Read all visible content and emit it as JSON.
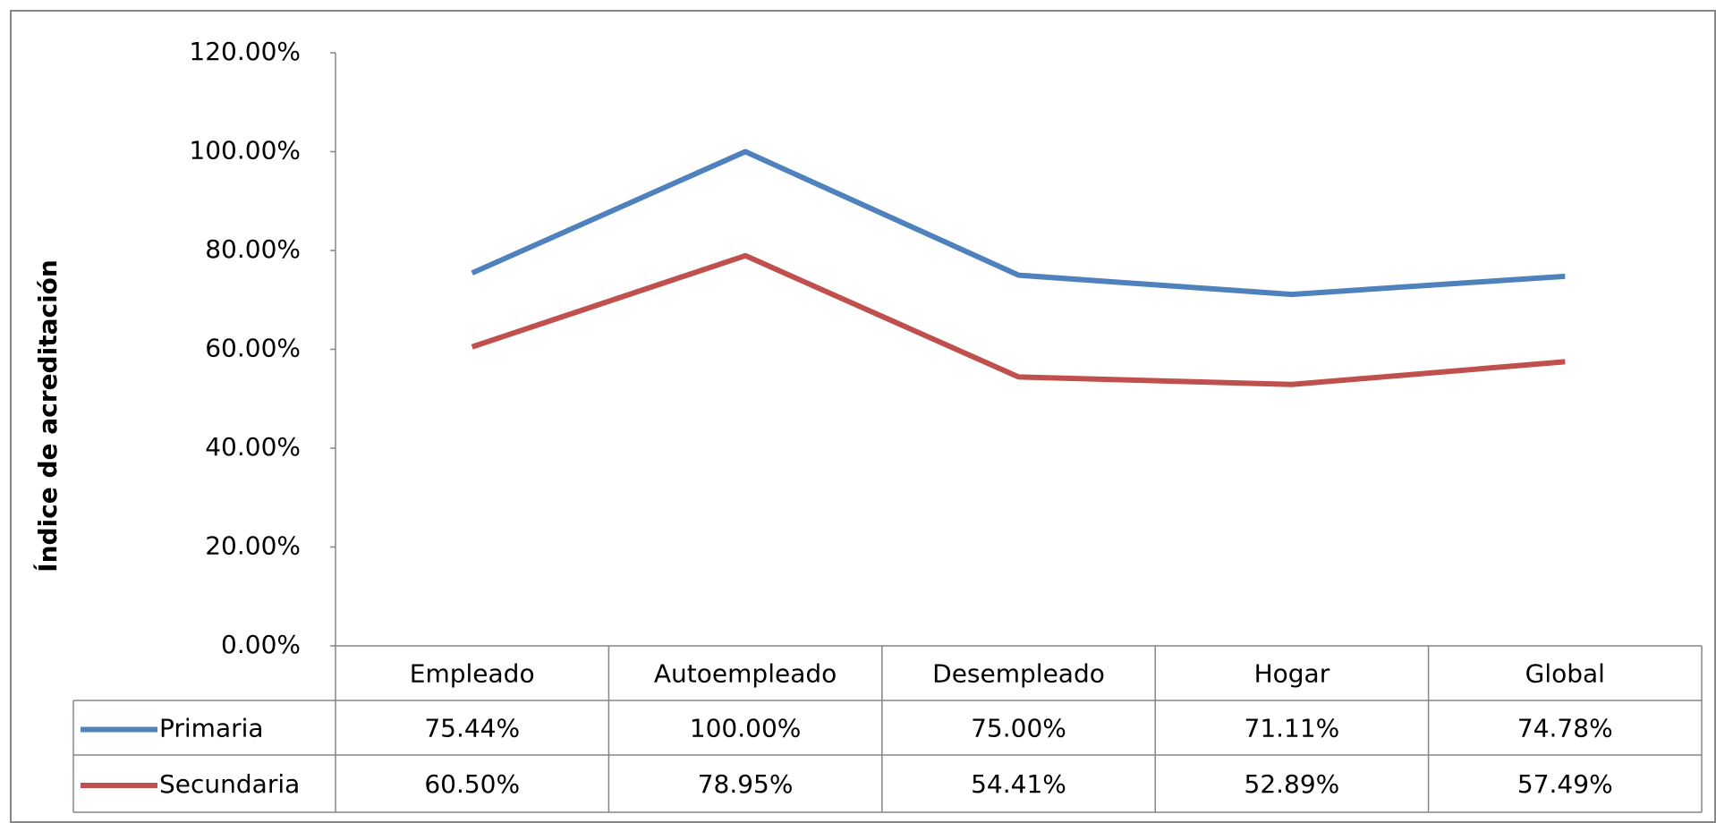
{
  "chart_data": {
    "type": "line",
    "y_axis_label": "Índice de acreditación",
    "categories": [
      "Empleado",
      "Autoempleado",
      "Desempleado",
      "Hogar",
      "Global"
    ],
    "series": [
      {
        "name": "Primaria",
        "color": "#4f81bd",
        "values": [
          75.44,
          100.0,
          75.0,
          71.11,
          74.78
        ],
        "value_labels": [
          "75.44%",
          "100.00%",
          "75.00%",
          "71.11%",
          "74.78%"
        ]
      },
      {
        "name": "Secundaria",
        "color": "#c0504d",
        "values": [
          60.5,
          78.95,
          54.41,
          52.89,
          57.49
        ],
        "value_labels": [
          "60.50%",
          "78.95%",
          "54.41%",
          "52.89%",
          "57.49%"
        ]
      }
    ],
    "ylim": [
      0,
      120
    ],
    "yticks": [
      {
        "value": 0,
        "label": "0.00%"
      },
      {
        "value": 20,
        "label": "20.00%"
      },
      {
        "value": 40,
        "label": "40.00%"
      },
      {
        "value": 60,
        "label": "60.00%"
      },
      {
        "value": 80,
        "label": "80.00%"
      },
      {
        "value": 100,
        "label": "100.00%"
      },
      {
        "value": 120,
        "label": "120.00%"
      }
    ],
    "grid": false
  }
}
